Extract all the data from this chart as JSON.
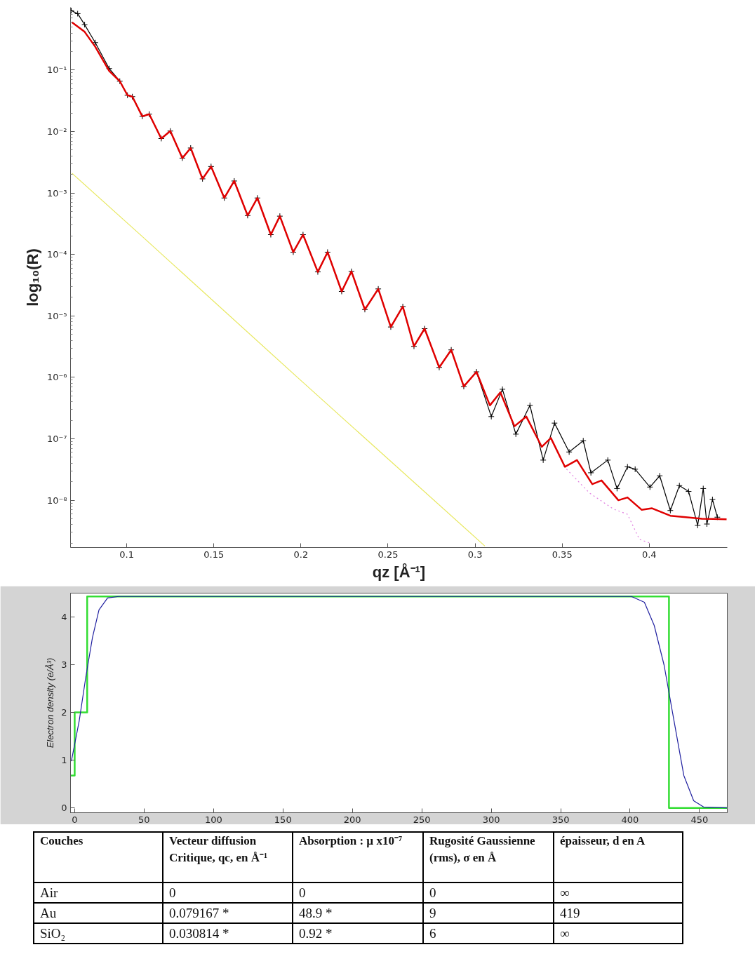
{
  "chart_data": [
    {
      "type": "line",
      "xlabel": "qz [Å⁻¹]",
      "ylabel": "log₁₀(R)",
      "log": "y",
      "grid": false,
      "xlim": [
        0.0677,
        0.4448
      ],
      "ylim": [
        1.7e-09,
        1.05
      ],
      "xticks": [
        0.1,
        0.15,
        0.2,
        0.25,
        0.3,
        0.35,
        0.4
      ],
      "yticks": [
        {
          "value": 0.1,
          "label": "10⁻¹"
        },
        {
          "value": 0.01,
          "label": "10⁻²"
        },
        {
          "value": 0.001,
          "label": "10⁻³"
        },
        {
          "value": 0.0001,
          "label": "10⁻⁴"
        },
        {
          "value": 1e-05,
          "label": "10⁻⁵"
        },
        {
          "value": 1e-06,
          "label": "10⁻⁶"
        },
        {
          "value": 1e-07,
          "label": "10⁻⁷"
        },
        {
          "value": 1e-08,
          "label": "10⁻⁸"
        }
      ],
      "series": [
        {
          "color": "#e080e0",
          "line_style": "dotted",
          "marker": "none",
          "x": [
            0.3508,
            0.3657,
            0.3794,
            0.3875,
            0.3944,
            0.4008
          ],
          "values": [
            3.6e-08,
            1.31e-08,
            7.2e-09,
            5.9e-09,
            2.3e-09,
            2e-09
          ]
        },
        {
          "color": "#e8e860",
          "line_style": "solid",
          "marker": "none",
          "x": [
            0.0685,
            0.1089,
            0.1992,
            0.3056
          ],
          "values": [
            0.0021,
            0.000196,
            9.3e-07,
            1.8e-09
          ]
        },
        {
          "color": "#000000",
          "line_style": "solid",
          "marker": "cross",
          "x": [
            0.0681,
            0.0718,
            0.0758,
            0.0819,
            0.0899,
            0.096,
            0.1004,
            0.1032,
            0.1089,
            0.1129,
            0.1198,
            0.125,
            0.1319,
            0.1367,
            0.1435,
            0.1484,
            0.156,
            0.1617,
            0.1694,
            0.175,
            0.1827,
            0.1879,
            0.1956,
            0.2012,
            0.2097,
            0.2153,
            0.2234,
            0.229,
            0.2367,
            0.2444,
            0.2516,
            0.2585,
            0.2649,
            0.271,
            0.2794,
            0.2863,
            0.2935,
            0.3008,
            0.3093,
            0.3157,
            0.3234,
            0.3315,
            0.3391,
            0.3456,
            0.354,
            0.3621,
            0.3665,
            0.3762,
            0.3815,
            0.3875,
            0.3919,
            0.4004,
            0.406,
            0.4121,
            0.4173,
            0.4226,
            0.4278,
            0.431,
            0.4331,
            0.4363,
            0.4391
          ],
          "values": [
            0.93,
            0.83,
            0.55,
            0.28,
            0.106,
            0.066,
            0.039,
            0.037,
            0.0177,
            0.0192,
            0.0077,
            0.0102,
            0.0037,
            0.0054,
            0.0017,
            0.0027,
            0.00083,
            0.00157,
            0.00043,
            0.00083,
            0.00021,
            0.00042,
            0.000109,
            0.00021,
            5.2e-05,
            0.000109,
            2.5e-05,
            5.3e-05,
            1.27e-05,
            2.75e-05,
            6.6e-06,
            1.42e-05,
            3.2e-06,
            6.2e-06,
            1.45e-06,
            2.8e-06,
            7.1e-07,
            1.23e-06,
            2.3e-07,
            6.4e-07,
            1.19e-07,
            3.5e-07,
            4.5e-08,
            1.8e-07,
            6.1e-08,
            9.3e-08,
            2.8e-08,
            4.5e-08,
            1.55e-08,
            3.5e-08,
            3.2e-08,
            1.64e-08,
            2.5e-08,
            6.8e-09,
            1.73e-08,
            1.39e-08,
            3.9e-09,
            1.55e-08,
            4.1e-09,
            1.03e-08,
            5.3e-09
          ]
        },
        {
          "color": "#e00000",
          "line_style": "solid",
          "marker": "none",
          "x": [
            0.0685,
            0.0758,
            0.0819,
            0.0899,
            0.096,
            0.1004,
            0.1032,
            0.1089,
            0.1129,
            0.1198,
            0.125,
            0.1319,
            0.1367,
            0.1435,
            0.1484,
            0.156,
            0.1617,
            0.1694,
            0.175,
            0.1827,
            0.1879,
            0.1956,
            0.2012,
            0.2097,
            0.2153,
            0.2234,
            0.229,
            0.2367,
            0.2444,
            0.2516,
            0.2585,
            0.2649,
            0.271,
            0.2794,
            0.2863,
            0.2935,
            0.3008,
            0.3085,
            0.3145,
            0.3226,
            0.3294,
            0.3383,
            0.3435,
            0.3516,
            0.3585,
            0.3673,
            0.3726,
            0.3823,
            0.3875,
            0.3956,
            0.4016,
            0.4121,
            0.421,
            0.4302,
            0.4444
          ],
          "values": [
            0.6,
            0.42,
            0.24,
            0.097,
            0.066,
            0.039,
            0.037,
            0.0177,
            0.0192,
            0.0077,
            0.0102,
            0.0037,
            0.0054,
            0.0017,
            0.0027,
            0.00083,
            0.00157,
            0.00043,
            0.00083,
            0.00021,
            0.00042,
            0.000109,
            0.00021,
            5.2e-05,
            0.000109,
            2.5e-05,
            5.3e-05,
            1.27e-05,
            2.75e-05,
            6.6e-06,
            1.42e-05,
            3.2e-06,
            6.2e-06,
            1.45e-06,
            2.8e-06,
            7.1e-07,
            1.23e-06,
            3.5e-07,
            5.7e-07,
            1.6e-07,
            2.3e-07,
            7.4e-08,
            1.03e-07,
            3.5e-08,
            4.5e-08,
            1.83e-08,
            2.1e-08,
            1e-08,
            1.11e-08,
            7e-09,
            7.4e-09,
            5.6e-09,
            5.3e-09,
            5e-09,
            4.9e-09
          ]
        }
      ]
    },
    {
      "type": "line",
      "ylabel": "Electron density (e/Å³)",
      "grid": false,
      "xlim": [
        -3,
        470
      ],
      "ylim": [
        -0.1,
        4.5
      ],
      "xticks": [
        0,
        50,
        100,
        150,
        200,
        250,
        300,
        350,
        400,
        450
      ],
      "yticks": [
        0,
        1,
        2,
        3,
        4
      ],
      "series": [
        {
          "type": "step",
          "color": "#33dd33",
          "x": [
            -3,
            0,
            9,
            428,
            470
          ],
          "values": [
            0.68,
            2.0,
            4.43,
            0,
            0
          ]
        },
        {
          "type": "line",
          "color": "#2020a0",
          "x": [
            -2.4,
            3.3,
            8.0,
            12.8,
            17.5,
            23.7,
            31.7,
            400.9,
            410.3,
            417.4,
            424.5,
            431.6,
            438.7,
            445.8,
            452.9,
            470
          ],
          "values": [
            0.98,
            1.83,
            2.74,
            3.57,
            4.15,
            4.4,
            4.43,
            4.43,
            4.31,
            3.82,
            2.99,
            1.83,
            0.68,
            0.15,
            0.02,
            0
          ]
        }
      ]
    },
    {
      "type": "other",
      "annotations": [
        "Couches",
        "Vecteur diffusion Critique, qc, en Å⁻¹",
        "Absorption : µ x10⁻⁷",
        "Rugosité Gaussienne (rms), σ en Å",
        "épaisseur, d en A",
        "Air",
        "0",
        "0",
        "0",
        "∞",
        "Au",
        "0.079167 *",
        "48.9 *",
        "9",
        "419",
        "SiO₂",
        "0.030814 *",
        "0.92 *",
        "6",
        "∞"
      ]
    }
  ]
}
